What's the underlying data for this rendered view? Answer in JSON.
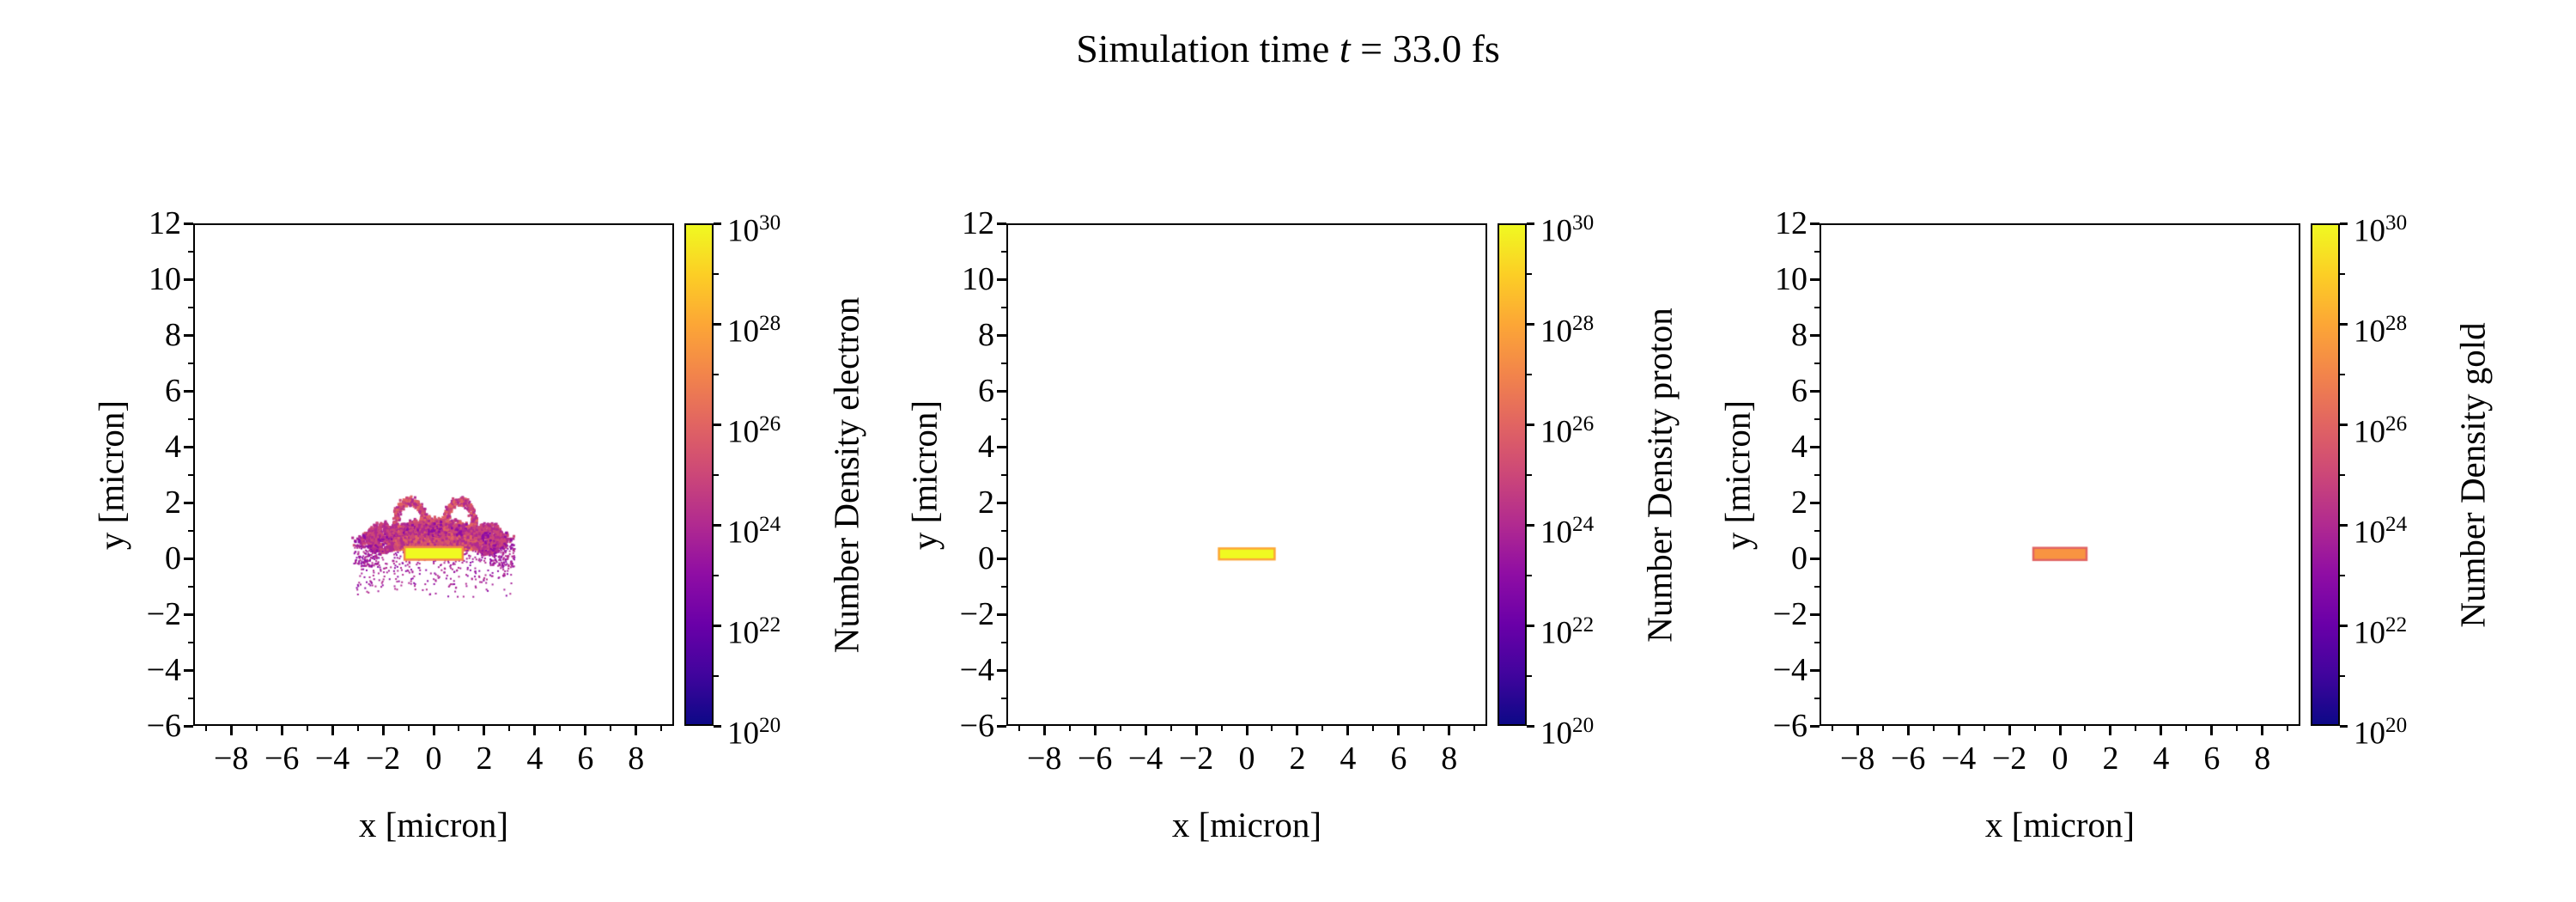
{
  "title": {
    "prefix": "Simulation time ",
    "var": "t",
    "suffix": " = 33.0 fs"
  },
  "background_color": "#ffffff",
  "text_color": "#000000",
  "colormap": {
    "name": "plasma",
    "stops": [
      "#0d0887",
      "#41049d",
      "#6a00a8",
      "#8f0da4",
      "#b12a90",
      "#cc4778",
      "#e16462",
      "#f2844b",
      "#fca636",
      "#fcce25",
      "#f0f921"
    ]
  },
  "chart_data": [
    {
      "type": "heatmap",
      "species": "electron",
      "xlabel": "x [micron]",
      "ylabel": "y [micron]",
      "xlim": [
        -9.5,
        9.5
      ],
      "ylim": [
        -6,
        12
      ],
      "xticks": [
        -8,
        -6,
        -4,
        -2,
        0,
        2,
        4,
        6,
        8
      ],
      "yticks": [
        -6,
        -4,
        -2,
        0,
        2,
        4,
        6,
        8,
        10,
        12
      ],
      "grid": false,
      "colorbar": {
        "label": "Number Density electron",
        "scale": "log10",
        "min_exponent": 20,
        "max_exponent": 30,
        "tick_exponents": [
          20,
          22,
          24,
          26,
          28,
          30
        ],
        "colormap": "plasma"
      },
      "content_summary": "Bright yellow target bar (~1e30) at y 0..0.38, x -1.15..1.15, with a magenta/pink splash plume expanding above it up to y 2.2 and out to x +/-2.9, plus sparse purple speckles below the bar down to y -1.5",
      "features": [
        {
          "kind": "speckle-fill",
          "x0": -1.8,
          "x1": 1.8,
          "y0": 0.32,
          "y1": 1.05,
          "n": 1600,
          "size": 3,
          "palette": [
            "#e16462",
            "#cc4778",
            "#d8576b",
            "#f2844b",
            "#cc4778"
          ]
        },
        {
          "kind": "speckle-fill",
          "x0": -2.9,
          "x1": 2.9,
          "y0": 0.38,
          "y1": 0.95,
          "n": 600,
          "size": 3,
          "palette": [
            "#cc4778",
            "#b12a90",
            "#d8576b"
          ]
        },
        {
          "kind": "speckle-arc",
          "cx": 0,
          "cy": 0.45,
          "rx": 1.55,
          "ry": 0.85,
          "a1": 5,
          "a2": 175,
          "n": 900,
          "jitter": 0.1,
          "size": 3,
          "palette": [
            "#cc4778",
            "#b12a90",
            "#e16462",
            "#d8576b"
          ]
        },
        {
          "kind": "speckle-arc",
          "cx": 0,
          "cy": 0.5,
          "rx": 2.6,
          "ry": 0.6,
          "a1": 8,
          "a2": 172,
          "n": 650,
          "jitter": 0.12,
          "size": 3,
          "palette": [
            "#cc4778",
            "#b12a90",
            "#8f0da4"
          ]
        },
        {
          "kind": "speckle-arc",
          "cx": -1.0,
          "cy": 1.35,
          "rx": 0.55,
          "ry": 0.75,
          "a1": -80,
          "a2": 260,
          "n": 430,
          "jitter": 0.08,
          "size": 3,
          "palette": [
            "#cc4778",
            "#e16462",
            "#b12a90"
          ]
        },
        {
          "kind": "speckle-arc",
          "cx": 1.0,
          "cy": 1.35,
          "rx": 0.55,
          "ry": 0.75,
          "a1": -80,
          "a2": 260,
          "n": 430,
          "jitter": 0.08,
          "size": 3,
          "palette": [
            "#cc4778",
            "#e16462",
            "#b12a90"
          ]
        },
        {
          "kind": "speckle-arc",
          "cx": -2.1,
          "cy": 0.75,
          "rx": 0.5,
          "ry": 0.45,
          "a1": 20,
          "a2": 330,
          "n": 260,
          "jitter": 0.09,
          "size": 3,
          "palette": [
            "#cc4778",
            "#b12a90"
          ]
        },
        {
          "kind": "speckle-arc",
          "cx": 2.1,
          "cy": 0.75,
          "rx": 0.5,
          "ry": 0.45,
          "a1": -150,
          "a2": 160,
          "n": 260,
          "jitter": 0.09,
          "size": 3,
          "palette": [
            "#cc4778",
            "#b12a90"
          ]
        },
        {
          "kind": "speckle-scatter",
          "x0": -3.1,
          "x1": 3.1,
          "y0": -1.5,
          "y1": 0.3,
          "n": 420,
          "size": 2,
          "bias": 0.55,
          "palette": [
            "#8f0da4",
            "#a62098",
            "#b12a90"
          ]
        },
        {
          "kind": "speckle-scatter",
          "x0": -3.2,
          "x1": -2.2,
          "y0": -0.3,
          "y1": 0.5,
          "n": 130,
          "size": 2,
          "palette": [
            "#8f0da4",
            "#b12a90"
          ]
        },
        {
          "kind": "speckle-scatter",
          "x0": 2.2,
          "x1": 3.2,
          "y0": -0.3,
          "y1": 0.5,
          "n": 130,
          "size": 2,
          "palette": [
            "#8f0da4",
            "#b12a90"
          ]
        },
        {
          "kind": "bar",
          "x0": -1.15,
          "x1": 1.15,
          "y0": -0.06,
          "y1": 0.38,
          "fill": "#f0f921",
          "edge": "#f2844b"
        }
      ]
    },
    {
      "type": "heatmap",
      "species": "proton",
      "xlabel": "x [micron]",
      "ylabel": "y [micron]",
      "xlim": [
        -9.5,
        9.5
      ],
      "ylim": [
        -6,
        12
      ],
      "xticks": [
        -8,
        -6,
        -4,
        -2,
        0,
        2,
        4,
        6,
        8
      ],
      "yticks": [
        -6,
        -4,
        -2,
        0,
        2,
        4,
        6,
        8,
        10,
        12
      ],
      "grid": false,
      "colorbar": {
        "label": "Number Density proton",
        "scale": "log10",
        "min_exponent": 20,
        "max_exponent": 30,
        "tick_exponents": [
          20,
          22,
          24,
          26,
          28,
          30
        ],
        "colormap": "plasma"
      },
      "content_summary": "Single bright yellow bar (~1e30) at y 0..0.33, x -1.1..1.1; remainder of the domain is empty",
      "features": [
        {
          "kind": "bar",
          "x0": -1.1,
          "x1": 1.1,
          "y0": -0.05,
          "y1": 0.33,
          "fill": "#f0f921",
          "edge": "#fca636"
        }
      ]
    },
    {
      "type": "heatmap",
      "species": "gold",
      "xlabel": "x [micron]",
      "ylabel": "y [micron]",
      "xlim": [
        -9.5,
        9.5
      ],
      "ylim": [
        -6,
        12
      ],
      "xticks": [
        -8,
        -6,
        -4,
        -2,
        0,
        2,
        4,
        6,
        8
      ],
      "yticks": [
        -6,
        -4,
        -2,
        0,
        2,
        4,
        6,
        8,
        10,
        12
      ],
      "grid": false,
      "colorbar": {
        "label": "Number Density gold",
        "scale": "log10",
        "min_exponent": 20,
        "max_exponent": 30,
        "tick_exponents": [
          20,
          22,
          24,
          26,
          28,
          30
        ],
        "colormap": "plasma"
      },
      "content_summary": "Single orange bar (~1e27) at y 0..0.35, x -1.05..1.05; remainder of the domain is empty",
      "features": [
        {
          "kind": "bar",
          "x0": -1.05,
          "x1": 1.05,
          "y0": -0.07,
          "y1": 0.35,
          "fill": "#f89441",
          "edge": "#e16462"
        }
      ]
    }
  ]
}
